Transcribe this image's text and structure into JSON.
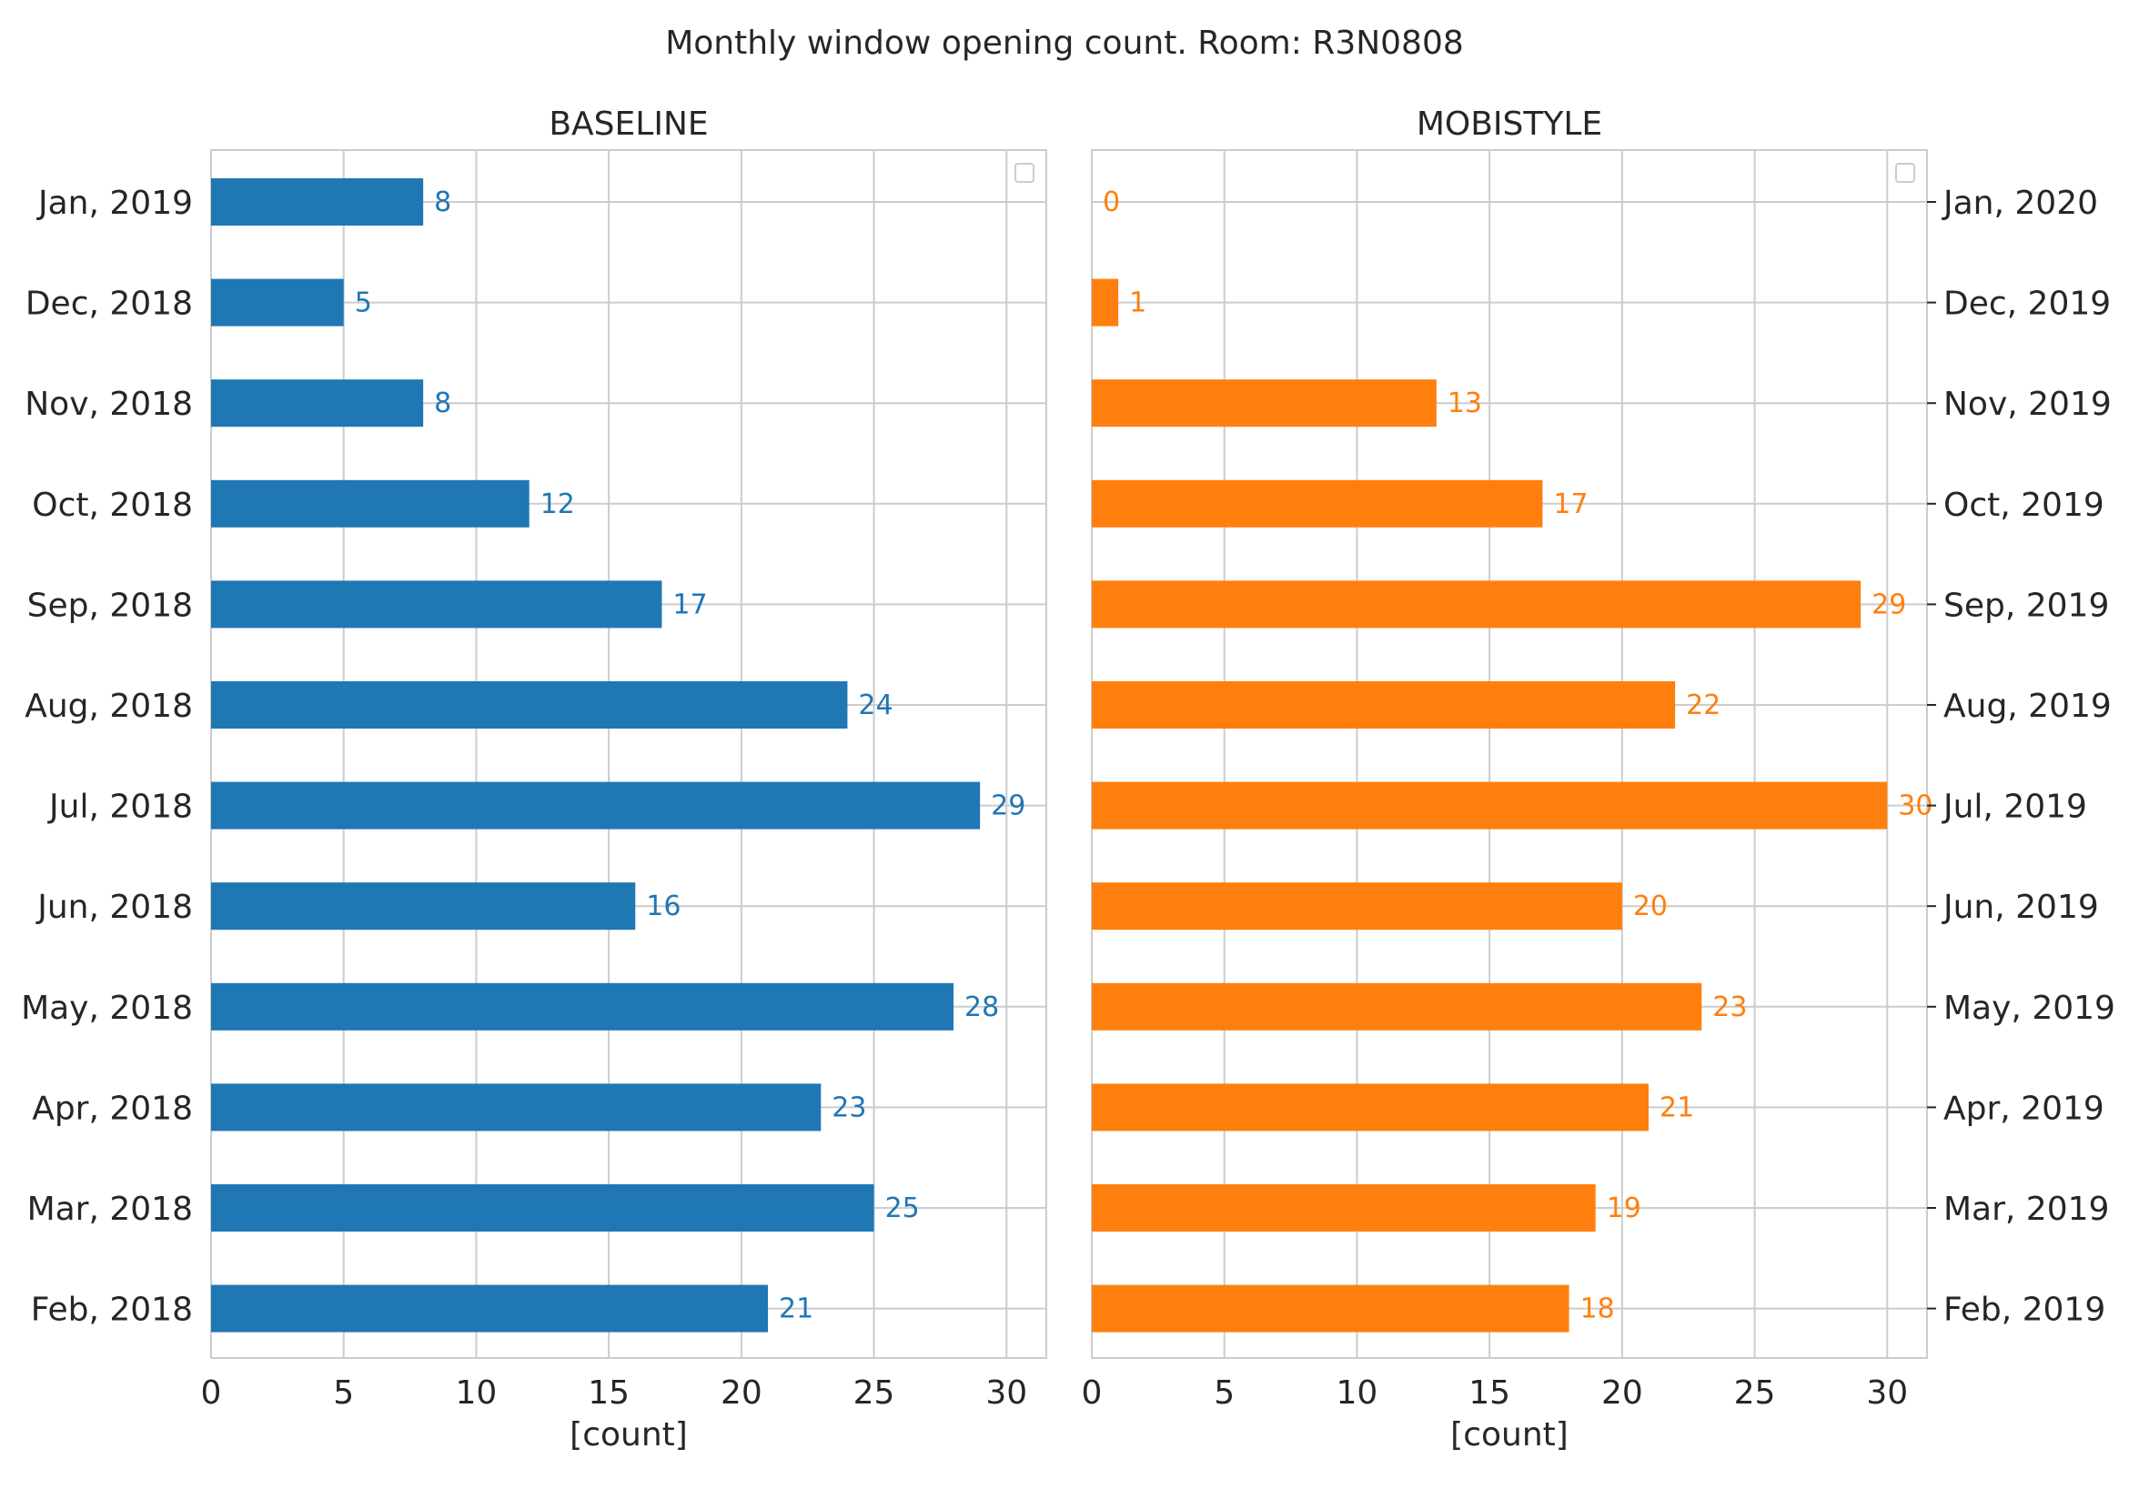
{
  "figure_title": "Monthly window opening count. Room: R3N0808",
  "chart_data": [
    {
      "type": "bar",
      "orientation": "horizontal",
      "title": "BASELINE",
      "xlabel": "[count]",
      "ylabel": "",
      "xlim": [
        0,
        31.5
      ],
      "xticks": [
        0,
        5,
        10,
        15,
        20,
        25,
        30
      ],
      "grid": true,
      "color": "#1f77b4",
      "categories": [
        "Jan, 2019",
        "Dec, 2018",
        "Nov, 2018",
        "Oct, 2018",
        "Sep, 2018",
        "Aug, 2018",
        "Jul, 2018",
        "Jun, 2018",
        "May, 2018",
        "Apr, 2018",
        "Mar, 2018",
        "Feb, 2018"
      ],
      "values": [
        8,
        5,
        8,
        12,
        17,
        24,
        29,
        16,
        28,
        23,
        25,
        21
      ],
      "category_axis_side": "left",
      "legend": "top-right (empty)"
    },
    {
      "type": "bar",
      "orientation": "horizontal",
      "title": "MOBISTYLE",
      "xlabel": "[count]",
      "ylabel": "",
      "xlim": [
        0,
        31.5
      ],
      "xticks": [
        0,
        5,
        10,
        15,
        20,
        25,
        30
      ],
      "grid": true,
      "color": "#ff7f0e",
      "categories": [
        "Jan, 2020",
        "Dec, 2019",
        "Nov, 2019",
        "Oct, 2019",
        "Sep, 2019",
        "Aug, 2019",
        "Jul, 2019",
        "Jun, 2019",
        "May, 2019",
        "Apr, 2019",
        "Mar, 2019",
        "Feb, 2019"
      ],
      "values": [
        0,
        1,
        13,
        17,
        29,
        22,
        30,
        20,
        23,
        21,
        19,
        18
      ],
      "category_axis_side": "right",
      "legend": "top-right (empty)"
    }
  ]
}
